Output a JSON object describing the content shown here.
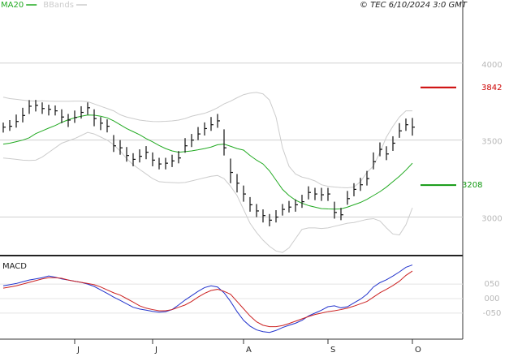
{
  "chart_data": {
    "type": "ohlc",
    "timestamp": "© TEC 6/10/2024 3:0 GMT",
    "categories": [
      null,
      null,
      null,
      null,
      null,
      null,
      null,
      null,
      null,
      null,
      null,
      "J",
      null,
      null,
      null,
      null,
      null,
      null,
      null,
      null,
      null,
      null,
      null,
      "J",
      null,
      null,
      null,
      null,
      null,
      null,
      null,
      null,
      null,
      null,
      null,
      null,
      null,
      "A",
      null,
      null,
      null,
      null,
      null,
      null,
      null,
      null,
      null,
      null,
      null,
      null,
      "S",
      null,
      null,
      null,
      null,
      null,
      null,
      null,
      null,
      null,
      null,
      null,
      null,
      "O"
    ],
    "ohlc": {
      "color": "#111111",
      "high": [
        3614,
        3630,
        3666,
        3710,
        3760,
        3761,
        3745,
        3730,
        3725,
        3700,
        3670,
        3692,
        3720,
        3745,
        3700,
        3650,
        3635,
        3533,
        3500,
        3455,
        3415,
        3440,
        3461,
        3420,
        3385,
        3385,
        3405,
        3429,
        3513,
        3540,
        3585,
        3615,
        3650,
        3670,
        3570,
        3380,
        3280,
        3205,
        3130,
        3085,
        3050,
        3020,
        3045,
        3085,
        3105,
        3115,
        3145,
        3200,
        3190,
        3190,
        3190,
        3100,
        3060,
        3170,
        3220,
        3255,
        3300,
        3420,
        3485,
        3460,
        3525,
        3610,
        3640,
        3644
      ],
      "low": [
        3549,
        3560,
        3581,
        3615,
        3670,
        3686,
        3670,
        3660,
        3660,
        3610,
        3585,
        3612,
        3640,
        3665,
        3590,
        3565,
        3550,
        3423,
        3405,
        3360,
        3330,
        3355,
        3376,
        3330,
        3310,
        3310,
        3325,
        3349,
        3418,
        3455,
        3500,
        3530,
        3560,
        3580,
        3400,
        3220,
        3160,
        3100,
        3035,
        3000,
        2965,
        2940,
        2965,
        3010,
        3030,
        3035,
        3060,
        3115,
        3110,
        3105,
        3105,
        2990,
        2980,
        3080,
        3135,
        3170,
        3205,
        3310,
        3395,
        3370,
        3430,
        3515,
        3560,
        3529
      ],
      "close": [
        3584,
        3590,
        3621,
        3660,
        3720,
        3726,
        3705,
        3700,
        3690,
        3650,
        3630,
        3647,
        3680,
        3710,
        3640,
        3610,
        3590,
        3463,
        3450,
        3400,
        3375,
        3395,
        3421,
        3370,
        3345,
        3350,
        3365,
        3384,
        3463,
        3500,
        3540,
        3575,
        3600,
        3625,
        3450,
        3290,
        3220,
        3150,
        3080,
        3040,
        3010,
        2980,
        3000,
        3050,
        3065,
        3080,
        3100,
        3160,
        3150,
        3145,
        3150,
        3030,
        3015,
        3120,
        3180,
        3210,
        3250,
        3360,
        3440,
        3410,
        3480,
        3560,
        3600,
        3584
      ]
    },
    "series": [
      {
        "name": "MA20",
        "color": "#22aa22",
        "values": [
          3474,
          3480,
          3490,
          3500,
          3515,
          3542,
          3560,
          3578,
          3595,
          3615,
          3632,
          3645,
          3655,
          3663,
          3662,
          3655,
          3645,
          3625,
          3600,
          3575,
          3555,
          3535,
          3510,
          3489,
          3465,
          3445,
          3430,
          3421,
          3425,
          3430,
          3437,
          3445,
          3455,
          3470,
          3474,
          3460,
          3445,
          3435,
          3400,
          3370,
          3345,
          3300,
          3240,
          3180,
          3140,
          3110,
          3090,
          3075,
          3065,
          3055,
          3053,
          3052,
          3053,
          3065,
          3080,
          3095,
          3115,
          3140,
          3165,
          3195,
          3230,
          3265,
          3305,
          3350
        ]
      },
      {
        "name": "BBands",
        "color": "#cccccc",
        "upper": [
          3779,
          3770,
          3765,
          3760,
          3755,
          3753,
          3755,
          3753,
          3752,
          3752,
          3752,
          3753,
          3753,
          3750,
          3735,
          3720,
          3705,
          3690,
          3665,
          3650,
          3640,
          3630,
          3625,
          3621,
          3620,
          3622,
          3625,
          3630,
          3640,
          3655,
          3665,
          3674,
          3690,
          3710,
          3735,
          3753,
          3775,
          3795,
          3805,
          3810,
          3800,
          3760,
          3650,
          3450,
          3330,
          3280,
          3260,
          3250,
          3235,
          3210,
          3200,
          3195,
          3192,
          3190,
          3195,
          3230,
          3290,
          3332,
          3420,
          3520,
          3590,
          3650,
          3690,
          3690
        ],
        "lower": [
          3384,
          3380,
          3375,
          3370,
          3368,
          3370,
          3390,
          3420,
          3450,
          3480,
          3495,
          3510,
          3530,
          3550,
          3540,
          3520,
          3500,
          3470,
          3430,
          3380,
          3340,
          3310,
          3280,
          3250,
          3230,
          3226,
          3224,
          3222,
          3225,
          3235,
          3245,
          3255,
          3265,
          3270,
          3250,
          3200,
          3140,
          3050,
          2960,
          2900,
          2850,
          2810,
          2780,
          2770,
          2800,
          2860,
          2920,
          2930,
          2930,
          2926,
          2930,
          2940,
          2950,
          2960,
          2965,
          2975,
          2985,
          2990,
          2975,
          2930,
          2890,
          2884,
          2950,
          3060
        ]
      }
    ],
    "ylim": [
      2750,
      4410
    ],
    "yticks": [
      4000,
      3500,
      3000
    ],
    "grid": true,
    "levels": [
      {
        "value": 3842,
        "color": "#cc0000"
      },
      {
        "value": 3208,
        "color": "#119911"
      }
    ],
    "macd": {
      "title": "MACD",
      "ylim": [
        -140,
        140
      ],
      "yticks": [
        {
          "value": 50,
          "label": "050"
        },
        {
          "value": 0,
          "label": "000"
        },
        {
          "value": -50,
          "label": "-050"
        }
      ],
      "series": [
        {
          "color": "#2233cc",
          "values": [
            44,
            48,
            52,
            58,
            64,
            68,
            72,
            78,
            74,
            68,
            64,
            60,
            56,
            50,
            42,
            30,
            18,
            5,
            -6,
            -18,
            -30,
            -36,
            -40,
            -44,
            -47,
            -45,
            -38,
            -22,
            -5,
            10,
            25,
            38,
            44,
            40,
            20,
            -10,
            -45,
            -75,
            -95,
            -108,
            -114,
            -117,
            -110,
            -100,
            -92,
            -85,
            -75,
            -60,
            -50,
            -40,
            -28,
            -25,
            -32,
            -28,
            -15,
            -2,
            15,
            40,
            55,
            65,
            78,
            92,
            108,
            116
          ]
        },
        {
          "color": "#cc2222",
          "values": [
            36,
            40,
            44,
            50,
            56,
            62,
            68,
            72,
            72,
            70,
            64,
            60,
            56,
            52,
            48,
            40,
            30,
            20,
            12,
            0,
            -12,
            -25,
            -33,
            -38,
            -42,
            -42,
            -38,
            -30,
            -22,
            -10,
            5,
            18,
            28,
            32,
            25,
            15,
            -10,
            -35,
            -60,
            -80,
            -92,
            -97,
            -97,
            -93,
            -86,
            -78,
            -70,
            -62,
            -55,
            -50,
            -45,
            -42,
            -38,
            -33,
            -26,
            -18,
            -10,
            5,
            20,
            32,
            45,
            60,
            80,
            95
          ]
        }
      ]
    }
  }
}
